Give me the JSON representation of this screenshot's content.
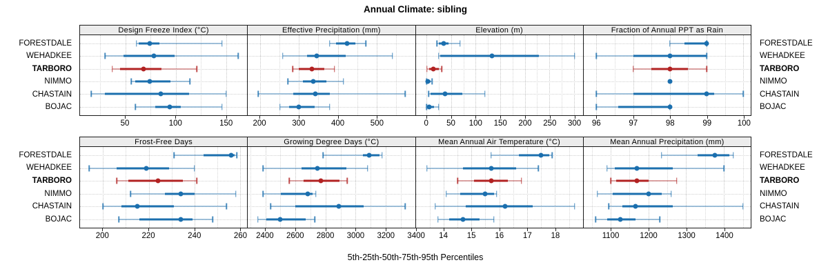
{
  "title": "Annual Climate: sibling",
  "caption": "5th-25th-50th-75th-95th Percentiles",
  "rows": [
    "FORESTDALE",
    "WEHADKEE",
    "TARBORO",
    "NIMMO",
    "CHASTAIN",
    "BOJAC"
  ],
  "highlight_row": "TARBORO",
  "percentile_labels": [
    "5th",
    "25th",
    "50th",
    "75th",
    "95th"
  ],
  "colors": {
    "series_blue": "#1b6fae",
    "series_blue_light": "rgba(27,111,174,0.40)",
    "highlight_red": "#b22222",
    "highlight_red_light": "rgba(178,34,34,0.40)",
    "strip_background": "#ececec",
    "panel_border": "#1a1a1a",
    "gridline": "#c3c3c3"
  },
  "chart_data": {
    "type": "dot-whisker-percentile",
    "legend_position": "none",
    "grid": "on",
    "bands": [
      [
        0,
        1,
        2,
        3
      ],
      [
        4,
        5,
        6,
        7
      ]
    ],
    "panels": [
      {
        "title": "Design Freeze Index (°C)",
        "domain": [
          5,
          171
        ],
        "ticks": [
          50,
          100,
          150
        ],
        "minor_ticks": [
          25,
          75,
          125
        ],
        "values": {
          "FORESTDALE": [
            61,
            63,
            74,
            84,
            146
          ],
          "WEHADKEE": [
            30,
            48,
            78,
            99,
            162
          ],
          "TARBORO": [
            37,
            45,
            68,
            86,
            121
          ],
          "NIMMO": [
            56,
            60,
            74,
            95,
            114
          ],
          "CHASTAIN": [
            16,
            30,
            85,
            113,
            150
          ],
          "BOJAC": [
            60,
            80,
            94,
            105,
            146
          ]
        }
      },
      {
        "title": "Effective Precipitation (mm)",
        "domain": [
          169,
          598
        ],
        "ticks": [
          200,
          300,
          400,
          500
        ],
        "minor_ticks": [
          250,
          350,
          450,
          550
        ],
        "values": {
          "FORESTDALE": [
            379,
            395,
            423,
            445,
            472
          ],
          "WEHADKEE": [
            258,
            320,
            346,
            420,
            540
          ],
          "TARBORO": [
            284,
            300,
            334,
            365,
            391
          ],
          "NIMMO": [
            272,
            310,
            337,
            370,
            414
          ],
          "CHASTAIN": [
            196,
            285,
            342,
            380,
            573
          ],
          "BOJAC": [
            251,
            275,
            300,
            340,
            379
          ]
        }
      },
      {
        "title": "Elevation (m)",
        "domain": [
          -22,
          318
        ],
        "ticks": [
          0,
          50,
          100,
          150,
          200,
          250,
          300
        ],
        "minor_ticks": [
          25,
          75,
          125,
          175,
          225,
          275
        ],
        "values": {
          "FORESTDALE": [
            21,
            25,
            35,
            45,
            68
          ],
          "WEHADKEE": [
            25,
            28,
            133,
            228,
            301
          ],
          "TARBORO": [
            1,
            5,
            14,
            25,
            31
          ],
          "NIMMO": [
            0,
            1,
            3,
            8,
            11
          ],
          "CHASTAIN": [
            4,
            8,
            37,
            73,
            119
          ],
          "BOJAC": [
            0,
            2,
            6,
            15,
            25
          ]
        }
      },
      {
        "title": "Fraction of Annual PPT as Rain",
        "domain": [
          95.65,
          100.2
        ],
        "ticks": [
          96,
          97,
          98,
          99,
          100
        ],
        "minor_ticks": [
          96.5,
          97.5,
          98.5,
          99.5
        ],
        "values": {
          "FORESTDALE": [
            98,
            98.4,
            99,
            99,
            99
          ],
          "WEHADKEE": [
            96,
            97,
            98,
            99,
            99
          ],
          "TARBORO": [
            97,
            97.5,
            98,
            98.5,
            99
          ],
          "NIMMO": [
            98,
            98,
            98,
            98,
            98
          ],
          "CHASTAIN": [
            96,
            97,
            99,
            99.2,
            100
          ],
          "BOJAC": [
            96,
            96.6,
            98,
            98,
            98
          ]
        }
      },
      {
        "title": "Frost-Free Days",
        "domain": [
          190,
          263
        ],
        "ticks": [
          200,
          220,
          240,
          260
        ],
        "minor_ticks": [
          210,
          230,
          250
        ],
        "values": {
          "FORESTDALE": [
            231,
            244,
            256,
            257.5,
            258.5
          ],
          "WEHADKEE": [
            194,
            206,
            219,
            229,
            240
          ],
          "TARBORO": [
            206,
            211,
            224,
            235,
            241
          ],
          "NIMMO": [
            212,
            227,
            234,
            240,
            258
          ],
          "CHASTAIN": [
            200,
            208,
            215,
            231,
            254
          ],
          "BOJAC": [
            207,
            216,
            234,
            239,
            248
          ]
        }
      },
      {
        "title": "Growing Degree Days (°C)",
        "domain": [
          2284,
          3395
        ],
        "ticks": [
          2400,
          2600,
          2800,
          3000,
          3200,
          3400
        ],
        "minor_ticks": [
          2300,
          2500,
          2700,
          2900,
          3100,
          3300
        ],
        "values": {
          "FORESTDALE": [
            2785,
            3050,
            3090,
            3160,
            3175
          ],
          "WEHADKEE": [
            2385,
            2640,
            2745,
            2940,
            3080
          ],
          "TARBORO": [
            2560,
            2655,
            2770,
            2895,
            2945
          ],
          "NIMMO": [
            2385,
            2505,
            2680,
            2715,
            2735
          ],
          "CHASTAIN": [
            2435,
            2600,
            2890,
            3055,
            3330
          ],
          "BOJAC": [
            2350,
            2405,
            2500,
            2670,
            2730
          ]
        }
      },
      {
        "title": "Mean Annual Air Temperature (°C)",
        "domain": [
          13.0,
          19.0
        ],
        "ticks": [
          14,
          15,
          16,
          17,
          18
        ],
        "minor_ticks": [
          13.5,
          14.5,
          15.5,
          16.5,
          17.5,
          18.5
        ],
        "values": {
          "FORESTDALE": [
            15.7,
            16.7,
            17.5,
            17.8,
            17.9
          ],
          "WEHADKEE": [
            13.4,
            14.7,
            15.7,
            16.6,
            17.4
          ],
          "TARBORO": [
            14.5,
            15.1,
            15.7,
            16.3,
            16.8
          ],
          "NIMMO": [
            14.1,
            14.6,
            15.5,
            15.8,
            15.9
          ],
          "CHASTAIN": [
            13.7,
            14.8,
            16.2,
            17.2,
            18.7
          ],
          "BOJAC": [
            13.8,
            14.2,
            14.7,
            15.3,
            15.8
          ]
        }
      },
      {
        "title": "Mean Annual Precipitation (mm)",
        "domain": [
          1028,
          1471
        ],
        "ticks": [
          1100,
          1200,
          1300,
          1400
        ],
        "minor_ticks": [
          1050,
          1150,
          1250,
          1350,
          1450
        ],
        "values": {
          "FORESTDALE": [
            1235,
            1330,
            1375,
            1415,
            1425
          ],
          "WEHADKEE": [
            1090,
            1110,
            1170,
            1265,
            1400
          ],
          "TARBORO": [
            1100,
            1115,
            1170,
            1200,
            1275
          ],
          "NIMMO": [
            1065,
            1105,
            1200,
            1235,
            1260
          ],
          "CHASTAIN": [
            1095,
            1130,
            1165,
            1265,
            1450
          ],
          "BOJAC": [
            1060,
            1090,
            1125,
            1165,
            1230
          ]
        }
      }
    ]
  }
}
